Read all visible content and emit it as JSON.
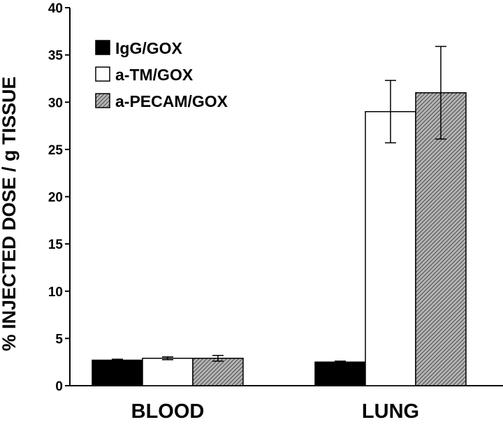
{
  "chart_data": {
    "type": "bar",
    "title": "",
    "xlabel": "",
    "ylabel": "% INJECTED DOSE / g TISSUE",
    "ylim": [
      0,
      40
    ],
    "yticks": [
      0,
      5,
      10,
      15,
      20,
      25,
      30,
      35,
      40
    ],
    "grid": false,
    "legend_position": "top-left",
    "categories": [
      "BLOOD",
      "LUNG"
    ],
    "series": [
      {
        "name": "IgG/GOX",
        "values": [
          2.7,
          2.5
        ],
        "errors": [
          0.1,
          0.1
        ],
        "color": "#000000",
        "pattern": "solid"
      },
      {
        "name": "a-TM/GOX",
        "values": [
          2.9,
          29.0
        ],
        "errors": [
          0.15,
          3.3
        ],
        "color": "#ffffff",
        "pattern": "open"
      },
      {
        "name": "a-PECAM/GOX",
        "values": [
          2.9,
          31.0
        ],
        "errors": [
          0.3,
          4.9
        ],
        "color": "#808080",
        "pattern": "hatched"
      }
    ]
  }
}
